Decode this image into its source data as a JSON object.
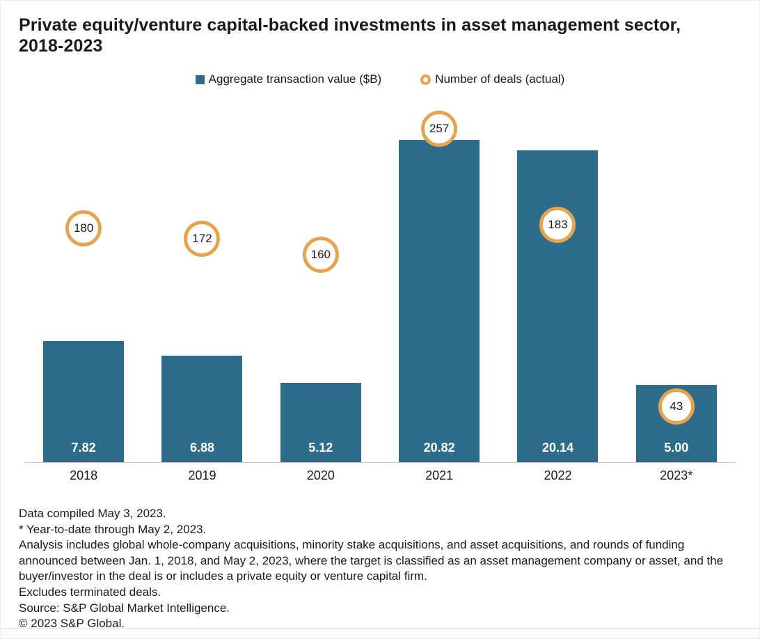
{
  "title": "Private equity/venture capital-backed investments in asset management sector, 2018-2023",
  "legend": {
    "items": [
      {
        "label": "Aggregate transaction value ($B)",
        "marker": "square-icon",
        "color": "#2d6c8a"
      },
      {
        "label": "Number of deals (actual)",
        "marker": "ring-icon",
        "color": "#e7a44e"
      }
    ]
  },
  "chart_data": {
    "type": "bar",
    "title": "Private equity/venture capital-backed investments in asset management sector, 2018-2023",
    "categories": [
      "2018",
      "2019",
      "2020",
      "2021",
      "2022",
      "2023*"
    ],
    "series": [
      {
        "name": "Aggregate transaction value ($B)",
        "type": "bar",
        "values": [
          7.82,
          6.88,
          5.12,
          20.82,
          20.14,
          5.0
        ],
        "labels": [
          "7.82",
          "6.88",
          "5.12",
          "20.82",
          "20.14",
          "5.00"
        ],
        "color": "#2d6c8a"
      },
      {
        "name": "Number of deals (actual)",
        "type": "point-circle",
        "values": [
          180,
          172,
          160,
          257,
          183,
          43
        ],
        "labels": [
          "180",
          "172",
          "160",
          "257",
          "183",
          "43"
        ],
        "color": "#e7a44e"
      }
    ],
    "xlabel": "",
    "ylabel": "",
    "value_axis_range": [
      0,
      23.5
    ],
    "deals_axis_range": [
      0,
      280.5
    ],
    "grid": false,
    "legend_position": "top",
    "value_labels_inside_bars": true,
    "deal_labels_in_circles": true
  },
  "footnotes": [
    "Data compiled May 3, 2023.",
    "* Year-to-date through May 2, 2023.",
    "Analysis includes global whole-company acquisitions, minority stake acquisitions, and asset acquisitions, and rounds of funding announced between Jan. 1, 2018, and May 2, 2023, where the target is classified as an asset management company or asset, and the buyer/investor in the deal is or includes a private equity or venture capital firm.",
    "Excludes terminated deals.",
    "Source: S&P Global Market Intelligence.",
    "© 2023 S&P Global."
  ],
  "colors": {
    "bar": "#2d6c8a",
    "ring": "#e7a44e",
    "axis_line": "#c9c9c9",
    "text": "#1a1a1a",
    "bar_value_text": "#ffffff"
  }
}
